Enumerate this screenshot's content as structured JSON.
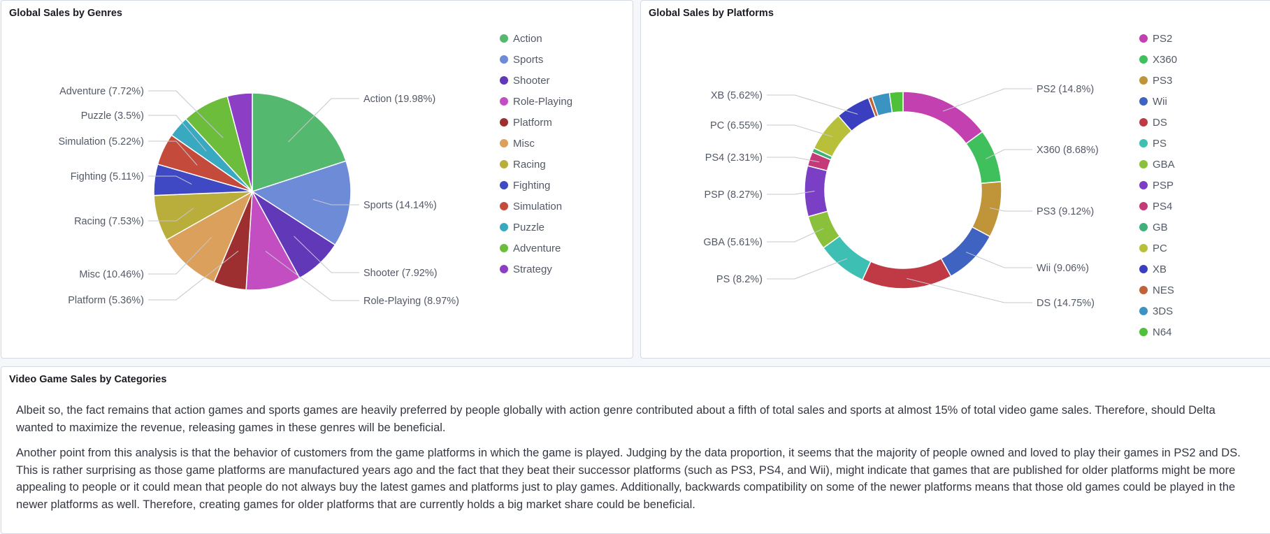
{
  "panels": {
    "genres_title": "Global Sales by Genres",
    "platforms_title": "Global Sales by Platforms",
    "text_title": "Video Game Sales by Categories"
  },
  "chart_data": [
    {
      "type": "pie",
      "title": "Global Sales by Genres",
      "legend_position": "right",
      "slices": [
        {
          "name": "Action",
          "percent": 19.98,
          "label": "Action (19.98%)",
          "color": "#54b96e",
          "label_side": "right"
        },
        {
          "name": "Sports",
          "percent": 14.14,
          "label": "Sports (14.14%)",
          "color": "#6e8bd8",
          "label_side": "right"
        },
        {
          "name": "Shooter",
          "percent": 7.92,
          "label": "Shooter (7.92%)",
          "color": "#6038b8",
          "label_side": "right"
        },
        {
          "name": "Role-Playing",
          "percent": 8.97,
          "label": "Role-Playing (8.97%)",
          "color": "#c24ec2",
          "label_side": "right"
        },
        {
          "name": "Platform",
          "percent": 5.36,
          "label": "Platform (5.36%)",
          "color": "#9e2f30",
          "label_side": "left"
        },
        {
          "name": "Misc",
          "percent": 10.46,
          "label": "Misc (10.46%)",
          "color": "#dca05d",
          "label_side": "left"
        },
        {
          "name": "Racing",
          "percent": 7.53,
          "label": "Racing (7.53%)",
          "color": "#b9ad3c",
          "label_side": "left"
        },
        {
          "name": "Fighting",
          "percent": 5.11,
          "label": "Fighting (5.11%)",
          "color": "#3f49c4",
          "label_side": "left"
        },
        {
          "name": "Simulation",
          "percent": 5.22,
          "label": "Simulation (5.22%)",
          "color": "#c44a3c",
          "label_side": "left"
        },
        {
          "name": "Puzzle",
          "percent": 3.5,
          "label": "Puzzle (3.5%)",
          "color": "#38a9c0",
          "label_side": "left"
        },
        {
          "name": "Adventure",
          "percent": 7.72,
          "label": "Adventure (7.72%)",
          "color": "#6cbd3c",
          "label_side": "left"
        },
        {
          "name": "Strategy",
          "percent": 4.09,
          "label": "",
          "color": "#8c3fc4",
          "label_side": "none"
        }
      ]
    },
    {
      "type": "pie",
      "subtype": "donut",
      "title": "Global Sales by Platforms",
      "legend_position": "right",
      "slices": [
        {
          "name": "PS2",
          "percent": 14.8,
          "label": "PS2 (14.8%)",
          "color": "#c240b0",
          "label_side": "right"
        },
        {
          "name": "X360",
          "percent": 8.68,
          "label": "X360 (8.68%)",
          "color": "#3fc05c",
          "label_side": "right"
        },
        {
          "name": "PS3",
          "percent": 9.12,
          "label": "PS3 (9.12%)",
          "color": "#c0953a",
          "label_side": "right"
        },
        {
          "name": "Wii",
          "percent": 9.06,
          "label": "Wii (9.06%)",
          "color": "#3f63c0",
          "label_side": "right"
        },
        {
          "name": "DS",
          "percent": 14.75,
          "label": "DS (14.75%)",
          "color": "#c03a45",
          "label_side": "right"
        },
        {
          "name": "PS",
          "percent": 8.2,
          "label": "PS (8.2%)",
          "color": "#3ebfb3",
          "label_side": "left"
        },
        {
          "name": "GBA",
          "percent": 5.61,
          "label": "GBA (5.61%)",
          "color": "#8ac03a",
          "label_side": "left"
        },
        {
          "name": "PSP",
          "percent": 8.27,
          "label": "PSP (8.27%)",
          "color": "#7a3fc4",
          "label_side": "left"
        },
        {
          "name": "PS4",
          "percent": 2.31,
          "label": "PS4 (2.31%)",
          "color": "#c43a78",
          "label_side": "left"
        },
        {
          "name": "GB",
          "percent": 0.7,
          "label": "",
          "color": "#3fb07a",
          "label_side": "none"
        },
        {
          "name": "PC",
          "percent": 6.55,
          "label": "PC (6.55%)",
          "color": "#b8c03a",
          "label_side": "left"
        },
        {
          "name": "XB",
          "percent": 5.62,
          "label": "XB (5.62%)",
          "color": "#3a3fc0",
          "label_side": "left"
        },
        {
          "name": "NES",
          "percent": 0.6,
          "label": "",
          "color": "#c0633a",
          "label_side": "none"
        },
        {
          "name": "3DS",
          "percent": 2.9,
          "label": "",
          "color": "#3a93c0",
          "label_side": "none"
        },
        {
          "name": "N64",
          "percent": 2.2,
          "label": "",
          "color": "#4ec03a",
          "label_side": "none"
        }
      ]
    }
  ],
  "text_panel": {
    "paragraphs": [
      "Albeit so, the fact remains that action games and sports games are heavily preferred by people globally with action genre contributed about a fifth of total sales and sports at almost 15% of total video game sales. Therefore, should Delta wanted to maximize the revenue, releasing games in these genres will be beneficial.",
      "Another point from this analysis is that the behavior of customers from the game platforms in which the game is played. Judging by the data proportion, it seems that the majority of people owned and loved to play their games in PS2 and DS. This is rather surprising as those game platforms are manufactured years ago and the fact that they beat their successor platforms (such as PS3, PS4, and Wii), might indicate that games that are published for older platforms might be more appealing to people or it could mean that people do not always buy the latest games and platforms just to play games. Additionally, backwards compatibility on some of the newer platforms means that those old games could be played in the newer platforms as well. Therefore, creating games for older platforms that are currently holds a big market share could be beneficial."
    ]
  }
}
